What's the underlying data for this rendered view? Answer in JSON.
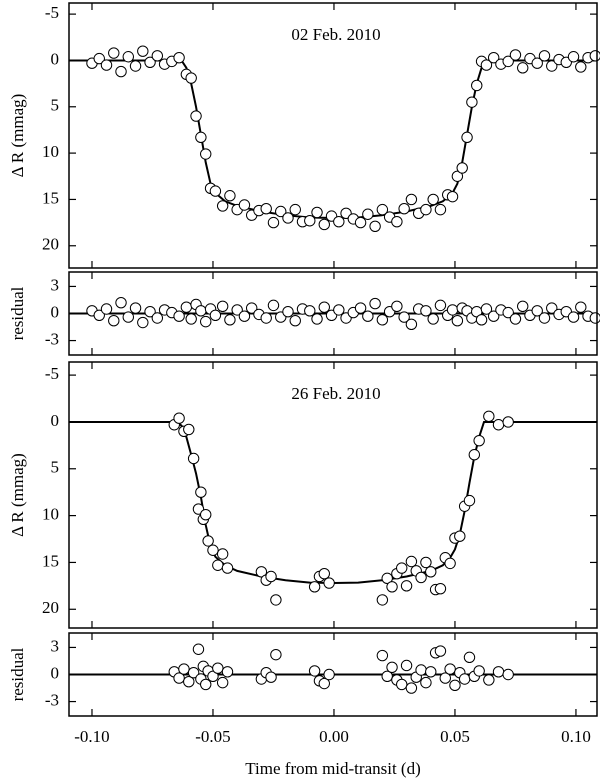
{
  "chart_data": [
    {
      "type": "scatter",
      "title": "02 Feb. 2010",
      "ylabel": "Δ R (mmag)",
      "xlim": [
        -0.1095,
        0.1087
      ],
      "xticks": [
        -0.1,
        -0.05,
        0,
        0.05,
        0.1
      ],
      "ylim": [
        22.4,
        -6.2
      ],
      "yticks": [
        -5,
        0,
        5,
        10,
        15,
        20
      ],
      "series": [
        {
          "mode": "markers",
          "color": "#000000",
          "x": [
            -0.1,
            -0.097,
            -0.094,
            -0.091,
            -0.088,
            -0.085,
            -0.082,
            -0.079,
            -0.076,
            -0.073,
            -0.07,
            -0.067,
            -0.064,
            -0.061,
            -0.059,
            -0.057,
            -0.055,
            -0.053,
            -0.051,
            -0.049,
            -0.046,
            -0.043,
            -0.04,
            -0.037,
            -0.034,
            -0.031,
            -0.028,
            -0.025,
            -0.022,
            -0.019,
            -0.016,
            -0.013,
            -0.01,
            -0.007,
            -0.004,
            -0.001,
            0.002,
            0.005,
            0.008,
            0.011,
            0.014,
            0.017,
            0.02,
            0.023,
            0.026,
            0.029,
            0.032,
            0.035,
            0.038,
            0.041,
            0.044,
            0.047,
            0.049,
            0.051,
            0.053,
            0.055,
            0.057,
            0.059,
            0.061,
            0.063,
            0.066,
            0.069,
            0.072,
            0.075,
            0.078,
            0.081,
            0.084,
            0.087,
            0.09,
            0.093,
            0.096,
            0.099,
            0.102,
            0.105,
            0.108
          ],
          "values": [
            0.3,
            -0.2,
            0.5,
            -0.8,
            1.2,
            -0.4,
            0.6,
            -1.0,
            0.2,
            -0.5,
            0.4,
            0.1,
            -0.3,
            1.5,
            1.9,
            6.0,
            8.3,
            10.1,
            13.8,
            14.1,
            15.7,
            14.6,
            16.1,
            15.6,
            16.7,
            16.2,
            16.0,
            17.5,
            16.3,
            17.0,
            16.1,
            17.4,
            17.3,
            16.4,
            17.7,
            16.8,
            17.4,
            16.5,
            17.1,
            17.5,
            16.6,
            17.9,
            16.1,
            16.9,
            17.4,
            16.0,
            15.0,
            16.5,
            16.1,
            15.0,
            16.1,
            14.5,
            14.7,
            12.5,
            11.6,
            8.3,
            4.5,
            2.7,
            0.1,
            0.5,
            -0.3,
            0.4,
            0.1,
            -0.6,
            0.8,
            -0.2,
            0.3,
            -0.5,
            0.6,
            -0.1,
            0.2,
            -0.4,
            0.7,
            -0.3,
            -0.5
          ]
        },
        {
          "mode": "line",
          "color": "#000000",
          "x": [
            -0.1095,
            -0.063,
            -0.061,
            -0.059,
            -0.057,
            -0.055,
            -0.053,
            -0.051,
            -0.049,
            -0.045,
            -0.04,
            -0.03,
            -0.02,
            -0.01,
            0,
            0.01,
            0.02,
            0.03,
            0.04,
            0.045,
            0.049,
            0.051,
            0.053,
            0.055,
            0.057,
            0.059,
            0.061,
            0.063,
            0.1087
          ],
          "values": [
            0,
            0,
            0.8,
            2.5,
            5,
            8,
            11,
            13.3,
            14.3,
            15.2,
            15.7,
            16.3,
            16.7,
            16.95,
            17,
            16.95,
            16.7,
            16.3,
            15.7,
            15.2,
            14.3,
            13.3,
            11,
            8,
            5,
            2.5,
            0.8,
            0,
            0
          ]
        }
      ]
    },
    {
      "type": "scatter",
      "ylabel": "residual",
      "xlim": [
        -0.1095,
        0.1087
      ],
      "xticks": [
        -0.1,
        -0.05,
        0,
        0.05,
        0.1
      ],
      "ylim": [
        -4.6,
        4.6
      ],
      "yticks": [
        3,
        0,
        -3
      ],
      "series": [
        {
          "mode": "markers",
          "color": "#000000",
          "x": [
            -0.1,
            -0.097,
            -0.094,
            -0.091,
            -0.088,
            -0.085,
            -0.082,
            -0.079,
            -0.076,
            -0.073,
            -0.07,
            -0.067,
            -0.064,
            -0.061,
            -0.059,
            -0.057,
            -0.055,
            -0.053,
            -0.051,
            -0.049,
            -0.046,
            -0.043,
            -0.04,
            -0.037,
            -0.034,
            -0.031,
            -0.028,
            -0.025,
            -0.022,
            -0.019,
            -0.016,
            -0.013,
            -0.01,
            -0.007,
            -0.004,
            -0.001,
            0.002,
            0.005,
            0.008,
            0.011,
            0.014,
            0.017,
            0.02,
            0.023,
            0.026,
            0.029,
            0.032,
            0.035,
            0.038,
            0.041,
            0.044,
            0.047,
            0.049,
            0.051,
            0.053,
            0.055,
            0.057,
            0.059,
            0.061,
            0.063,
            0.066,
            0.069,
            0.072,
            0.075,
            0.078,
            0.081,
            0.084,
            0.087,
            0.09,
            0.093,
            0.096,
            0.099,
            0.102,
            0.105,
            0.108
          ],
          "values": [
            0.3,
            -0.2,
            0.5,
            -0.8,
            1.2,
            -0.4,
            0.6,
            -1.0,
            0.2,
            -0.5,
            0.4,
            0.1,
            -0.3,
            0.7,
            -0.6,
            1.0,
            0.3,
            -0.9,
            0.5,
            -0.2,
            0.8,
            -0.7,
            0.4,
            -0.3,
            0.6,
            -0.1,
            -0.5,
            0.9,
            -0.4,
            0.2,
            -0.8,
            0.5,
            0.3,
            -0.6,
            0.7,
            -0.2,
            0.4,
            -0.5,
            0.1,
            0.6,
            -0.3,
            1.1,
            -0.7,
            0.2,
            0.8,
            -0.4,
            -1.2,
            0.5,
            0.3,
            -0.6,
            0.9,
            -0.2,
            0.4,
            -0.8,
            0.6,
            0.3,
            -0.5,
            0.2,
            -0.7,
            0.5,
            -0.3,
            0.4,
            0.1,
            -0.6,
            0.8,
            -0.2,
            0.3,
            -0.5,
            0.6,
            -0.1,
            0.2,
            -0.4,
            0.7,
            -0.3,
            -0.5
          ]
        },
        {
          "mode": "line",
          "color": "#000000",
          "x": [
            -0.1095,
            0.1087
          ],
          "values": [
            0,
            0
          ]
        }
      ]
    },
    {
      "type": "scatter",
      "title": "26 Feb. 2010",
      "ylabel": "Δ R (mmag)",
      "xlim": [
        -0.1095,
        0.1087
      ],
      "xticks": [
        -0.1,
        -0.05,
        0,
        0.05,
        0.1
      ],
      "ylim": [
        22.0,
        -6.4
      ],
      "yticks": [
        -5,
        0,
        5,
        10,
        15,
        20
      ],
      "series": [
        {
          "mode": "markers",
          "color": "#000000",
          "x": [
            -0.066,
            -0.064,
            -0.062,
            -0.06,
            -0.058,
            -0.056,
            -0.055,
            -0.054,
            -0.053,
            -0.052,
            -0.05,
            -0.048,
            -0.046,
            -0.044,
            -0.03,
            -0.028,
            -0.026,
            -0.024,
            -0.008,
            -0.006,
            -0.004,
            -0.002,
            0.02,
            0.022,
            0.024,
            0.026,
            0.028,
            0.03,
            0.032,
            0.034,
            0.036,
            0.038,
            0.04,
            0.042,
            0.044,
            0.046,
            0.048,
            0.05,
            0.052,
            0.054,
            0.056,
            0.058,
            0.06,
            0.064,
            0.068,
            0.072
          ],
          "values": [
            0.3,
            -0.4,
            1.0,
            0.8,
            3.9,
            9.3,
            7.5,
            10.4,
            9.9,
            12.7,
            13.7,
            15.3,
            14.1,
            15.6,
            16.0,
            16.9,
            16.5,
            19.0,
            17.6,
            16.5,
            16.2,
            17.2,
            19.0,
            16.7,
            17.6,
            16.2,
            15.6,
            17.5,
            14.9,
            15.9,
            16.6,
            15.0,
            16.0,
            17.9,
            17.8,
            14.5,
            15.1,
            12.4,
            12.2,
            9.0,
            8.4,
            3.5,
            2.0,
            -0.6,
            0.3,
            0.0
          ]
        },
        {
          "mode": "line",
          "color": "#000000",
          "x": [
            -0.1095,
            -0.065,
            -0.063,
            -0.061,
            -0.059,
            -0.057,
            -0.055,
            -0.053,
            -0.051,
            -0.049,
            -0.045,
            -0.04,
            -0.03,
            -0.02,
            -0.01,
            0,
            0.01,
            0.02,
            0.03,
            0.04,
            0.045,
            0.048,
            0.05,
            0.052,
            0.054,
            0.056,
            0.058,
            0.06,
            0.062,
            0.1087
          ],
          "values": [
            0,
            0,
            0.4,
            1.6,
            3.5,
            5.5,
            8,
            11,
            13.3,
            14.4,
            15.3,
            15.9,
            16.5,
            16.9,
            17.15,
            17.2,
            17.15,
            16.9,
            16.5,
            15.9,
            15.3,
            14.5,
            13.6,
            12.0,
            9.5,
            6.5,
            3.7,
            1.6,
            0,
            0
          ]
        }
      ]
    },
    {
      "type": "scatter",
      "ylabel": "residual",
      "xlabel": "Time from mid-transit (d)",
      "xlim": [
        -0.1095,
        0.1087
      ],
      "xticks": [
        {
          "value": -0.1,
          "label": "-0.10"
        },
        {
          "value": -0.05,
          "label": "-0.05"
        },
        {
          "value": 0,
          "label": "0.00"
        },
        {
          "value": 0.05,
          "label": "0.05"
        },
        {
          "value": 0.1,
          "label": "0.10"
        }
      ],
      "ylim": [
        -4.6,
        4.6
      ],
      "yticks": [
        3,
        0,
        -3
      ],
      "series": [
        {
          "mode": "markers",
          "color": "#000000",
          "x": [
            -0.066,
            -0.064,
            -0.062,
            -0.06,
            -0.058,
            -0.056,
            -0.055,
            -0.054,
            -0.053,
            -0.052,
            -0.05,
            -0.048,
            -0.046,
            -0.044,
            -0.03,
            -0.028,
            -0.026,
            -0.024,
            -0.008,
            -0.006,
            -0.004,
            -0.002,
            0.02,
            0.022,
            0.024,
            0.026,
            0.028,
            0.03,
            0.032,
            0.034,
            0.036,
            0.038,
            0.04,
            0.042,
            0.044,
            0.046,
            0.048,
            0.05,
            0.052,
            0.054,
            0.056,
            0.058,
            0.06,
            0.064,
            0.068,
            0.072
          ],
          "values": [
            0.3,
            -0.4,
            0.6,
            -0.8,
            0.2,
            2.8,
            -0.5,
            0.9,
            -1.1,
            0.4,
            -0.2,
            0.7,
            -0.9,
            0.3,
            -0.5,
            0.2,
            -0.3,
            2.2,
            0.4,
            -0.7,
            -1.0,
            0.0,
            2.1,
            -0.2,
            0.8,
            -0.6,
            -1.1,
            1.0,
            -1.5,
            -0.3,
            0.5,
            -0.9,
            0.3,
            2.4,
            2.6,
            -0.4,
            0.6,
            -1.2,
            0.2,
            -0.5,
            1.9,
            -0.2,
            0.4,
            -0.6,
            0.3,
            0.0
          ]
        },
        {
          "mode": "line",
          "color": "#000000",
          "x": [
            -0.1095,
            0.1087
          ],
          "values": [
            0,
            0
          ]
        }
      ]
    }
  ]
}
